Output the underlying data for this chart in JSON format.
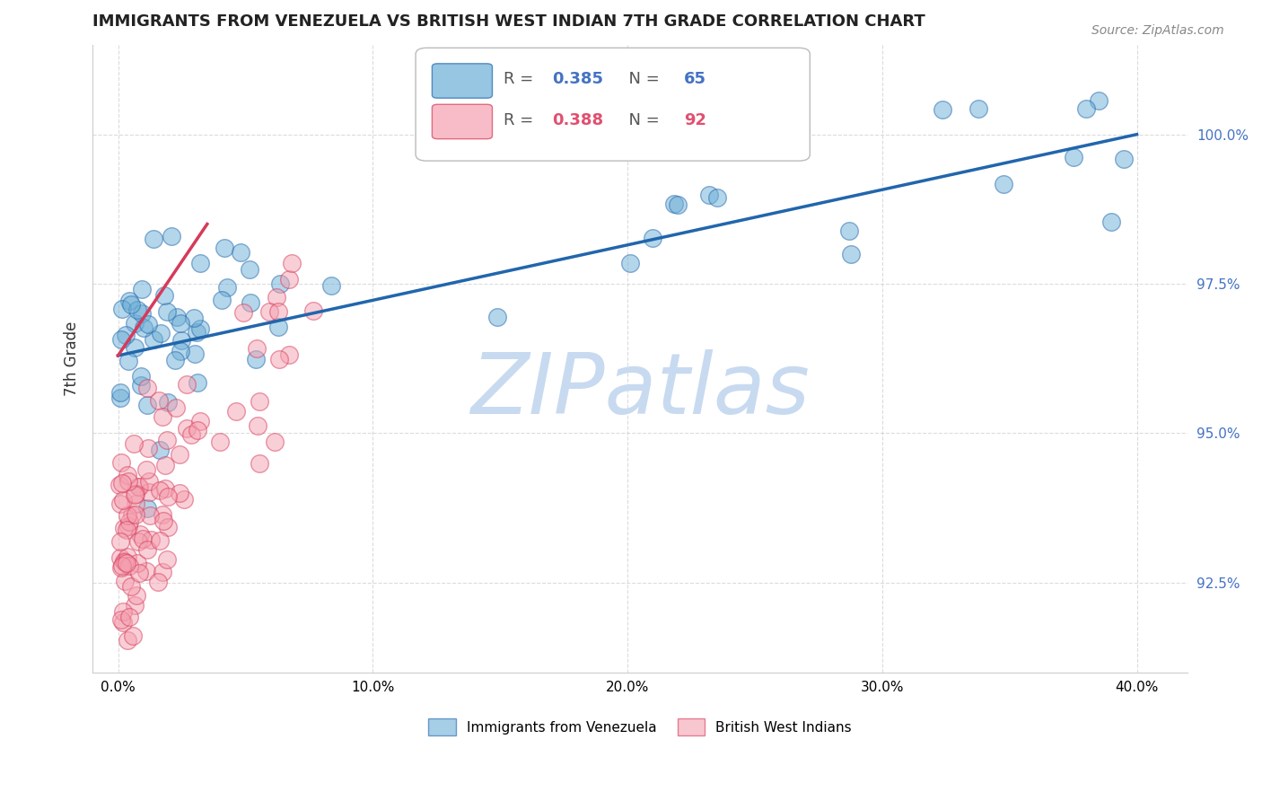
{
  "title": "IMMIGRANTS FROM VENEZUELA VS BRITISH WEST INDIAN 7TH GRADE CORRELATION CHART",
  "source": "Source: ZipAtlas.com",
  "ylabel": "7th Grade",
  "ylim": [
    91.0,
    101.5
  ],
  "xlim": [
    -1.0,
    42.0
  ],
  "blue_label": "Immigrants from Venezuela",
  "pink_label": "British West Indians",
  "blue_R": "0.385",
  "blue_N": "65",
  "pink_R": "0.388",
  "pink_N": "92",
  "blue_color": "#6baed6",
  "pink_color": "#f4a0b0",
  "blue_line_color": "#2166ac",
  "pink_line_color": "#d63a5a",
  "legend_blue_R_color": "#4472c4",
  "legend_pink_R_color": "#e05070",
  "watermark_color": "#c8daf0",
  "ytick_color": "#4472c4"
}
